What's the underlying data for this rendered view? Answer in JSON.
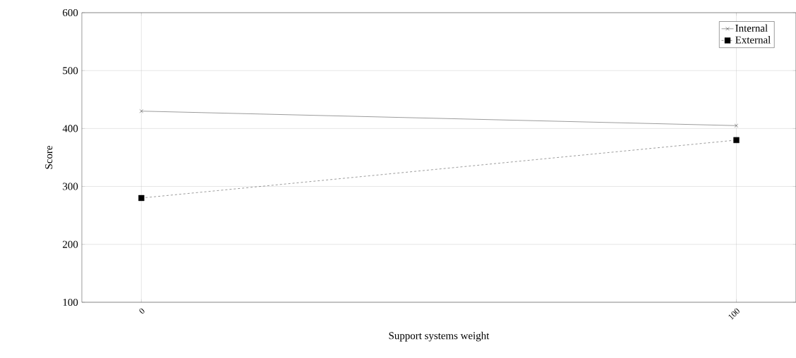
{
  "chart_data": {
    "type": "line",
    "xlabel": "Support systems weight",
    "ylabel": "Score",
    "x": [
      0,
      100
    ],
    "series": [
      {
        "name": "Internal",
        "color": "#000000",
        "values": [
          430,
          405
        ],
        "marker": "cross",
        "line_style": "solid"
      },
      {
        "name": "External",
        "color": "#000000",
        "values": [
          280,
          380
        ],
        "marker": "square",
        "line_style": "dashed"
      }
    ],
    "xlim": [
      -10,
      110
    ],
    "ylim": [
      100,
      600
    ],
    "xticks": [
      0,
      100
    ],
    "yticks": [
      100,
      200,
      300,
      400,
      500,
      600
    ],
    "grid": true,
    "legend": "top right"
  }
}
